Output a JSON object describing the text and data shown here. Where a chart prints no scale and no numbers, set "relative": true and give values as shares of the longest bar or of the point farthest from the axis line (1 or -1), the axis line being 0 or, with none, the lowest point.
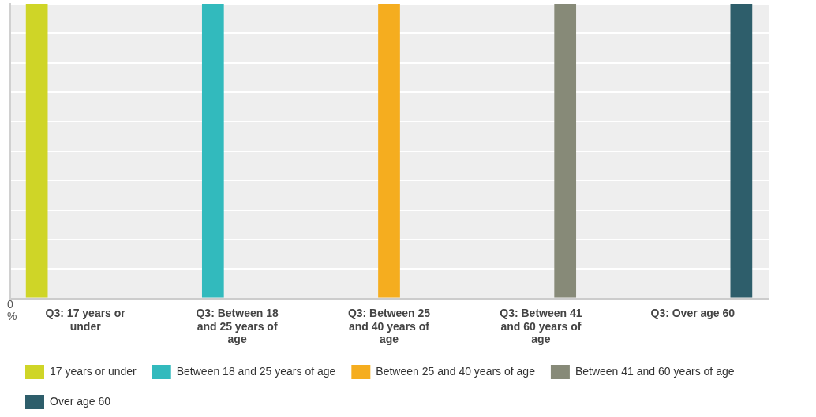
{
  "chart_data": {
    "type": "bar",
    "relative": true,
    "grid": "y",
    "legend": "bottom",
    "categories": [
      "Q3: 17 years or under",
      "Q3: Between 18 and 25 years of age",
      "Q3: Between 25 and 40 years of age",
      "Q3: Between 41 and 60 years of age",
      "Q3: Over age 60"
    ],
    "series": [
      {
        "name": "17 years or under",
        "color": "#cfd527",
        "values": [
          1,
          null,
          null,
          null,
          null
        ]
      },
      {
        "name": "Between 18 and 25 years of age",
        "color": "#32babd",
        "values": [
          null,
          1,
          null,
          null,
          null
        ]
      },
      {
        "name": "Between 25 and 40 years of age",
        "color": "#f5ad1f",
        "values": [
          null,
          null,
          1,
          null,
          null
        ]
      },
      {
        "name": "Between 41 and 60 years of age",
        "color": "#878a78",
        "values": [
          null,
          null,
          null,
          1,
          null
        ]
      },
      {
        "name": "Over age 60",
        "color": "#2e5e6b",
        "values": [
          null,
          null,
          null,
          null,
          1
        ]
      }
    ],
    "annotations": [
      "0 %"
    ]
  }
}
